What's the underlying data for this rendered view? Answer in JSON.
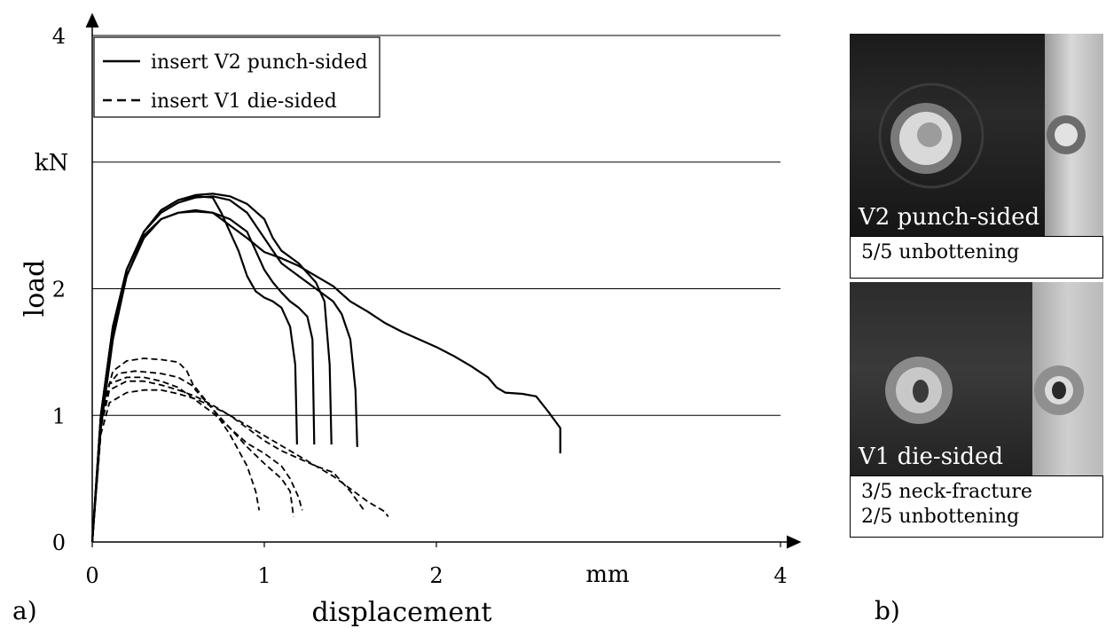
{
  "chart_data": {
    "type": "line",
    "xlabel": "displacement",
    "xunit": "mm",
    "ylabel": "load",
    "yunit": "kN",
    "xlim": [
      0,
      4
    ],
    "ylim": [
      0,
      4
    ],
    "xticks": [
      "0",
      "1",
      "2",
      "4"
    ],
    "yticks": [
      "0",
      "1",
      "2",
      "4"
    ],
    "grid": "horizontal",
    "legend_position": "top-left",
    "legend": [
      {
        "label": "insert V2 punch-sided",
        "style": "solid"
      },
      {
        "label": "insert V1 die-sided",
        "style": "dashed"
      }
    ],
    "series": [
      {
        "group": "V2",
        "style": "solid",
        "points": [
          [
            0,
            0
          ],
          [
            0.05,
            0.9
          ],
          [
            0.12,
            1.6
          ],
          [
            0.2,
            2.1
          ],
          [
            0.3,
            2.4
          ],
          [
            0.4,
            2.55
          ],
          [
            0.5,
            2.6
          ],
          [
            0.6,
            2.61
          ],
          [
            0.7,
            2.6
          ],
          [
            0.8,
            2.5
          ],
          [
            0.9,
            2.4
          ],
          [
            1.0,
            2.29
          ],
          [
            1.1,
            2.24
          ],
          [
            1.2,
            2.18
          ],
          [
            1.3,
            2.1
          ],
          [
            1.4,
            2.02
          ],
          [
            1.5,
            1.9
          ],
          [
            1.6,
            1.82
          ],
          [
            1.7,
            1.73
          ],
          [
            1.8,
            1.66
          ],
          [
            1.9,
            1.6
          ],
          [
            2.0,
            1.54
          ],
          [
            2.1,
            1.47
          ],
          [
            2.2,
            1.39
          ],
          [
            2.3,
            1.3
          ],
          [
            2.35,
            1.22
          ],
          [
            2.4,
            1.18
          ],
          [
            2.5,
            1.17
          ],
          [
            2.58,
            1.15
          ],
          [
            2.65,
            1.03
          ],
          [
            2.72,
            0.9
          ],
          [
            2.72,
            0.7
          ]
        ]
      },
      {
        "group": "V2",
        "style": "solid",
        "points": [
          [
            0,
            0
          ],
          [
            0.05,
            1.0
          ],
          [
            0.12,
            1.7
          ],
          [
            0.2,
            2.15
          ],
          [
            0.3,
            2.45
          ],
          [
            0.4,
            2.6
          ],
          [
            0.5,
            2.68
          ],
          [
            0.6,
            2.72
          ],
          [
            0.7,
            2.73
          ],
          [
            0.8,
            2.7
          ],
          [
            0.9,
            2.6
          ],
          [
            1.0,
            2.4
          ],
          [
            1.05,
            2.3
          ],
          [
            1.1,
            2.2
          ],
          [
            1.2,
            2.1
          ],
          [
            1.3,
            2.0
          ],
          [
            1.4,
            1.9
          ],
          [
            1.45,
            1.8
          ],
          [
            1.5,
            1.6
          ],
          [
            1.53,
            1.2
          ],
          [
            1.54,
            0.75
          ]
        ]
      },
      {
        "group": "V2",
        "style": "solid",
        "points": [
          [
            0,
            0
          ],
          [
            0.05,
            1.0
          ],
          [
            0.12,
            1.7
          ],
          [
            0.2,
            2.15
          ],
          [
            0.3,
            2.45
          ],
          [
            0.4,
            2.62
          ],
          [
            0.5,
            2.7
          ],
          [
            0.6,
            2.74
          ],
          [
            0.7,
            2.75
          ],
          [
            0.8,
            2.73
          ],
          [
            0.9,
            2.67
          ],
          [
            1.0,
            2.55
          ],
          [
            1.05,
            2.4
          ],
          [
            1.1,
            2.3
          ],
          [
            1.2,
            2.2
          ],
          [
            1.3,
            2.05
          ],
          [
            1.35,
            1.9
          ],
          [
            1.38,
            1.4
          ],
          [
            1.39,
            0.77
          ]
        ]
      },
      {
        "group": "V2",
        "style": "solid",
        "points": [
          [
            0,
            0
          ],
          [
            0.05,
            0.95
          ],
          [
            0.12,
            1.65
          ],
          [
            0.2,
            2.1
          ],
          [
            0.3,
            2.42
          ],
          [
            0.4,
            2.55
          ],
          [
            0.5,
            2.6
          ],
          [
            0.6,
            2.62
          ],
          [
            0.7,
            2.6
          ],
          [
            0.8,
            2.55
          ],
          [
            0.9,
            2.45
          ],
          [
            0.95,
            2.3
          ],
          [
            1.0,
            2.15
          ],
          [
            1.05,
            2.05
          ],
          [
            1.1,
            1.97
          ],
          [
            1.15,
            1.9
          ],
          [
            1.2,
            1.85
          ],
          [
            1.25,
            1.78
          ],
          [
            1.28,
            1.6
          ],
          [
            1.29,
            0.77
          ]
        ]
      },
      {
        "group": "V2",
        "style": "solid",
        "points": [
          [
            0,
            0
          ],
          [
            0.05,
            1.0
          ],
          [
            0.12,
            1.7
          ],
          [
            0.2,
            2.15
          ],
          [
            0.3,
            2.45
          ],
          [
            0.4,
            2.62
          ],
          [
            0.5,
            2.7
          ],
          [
            0.6,
            2.73
          ],
          [
            0.7,
            2.72
          ],
          [
            0.75,
            2.6
          ],
          [
            0.8,
            2.45
          ],
          [
            0.85,
            2.3
          ],
          [
            0.9,
            2.1
          ],
          [
            0.95,
            1.98
          ],
          [
            1.0,
            1.93
          ],
          [
            1.05,
            1.9
          ],
          [
            1.1,
            1.85
          ],
          [
            1.15,
            1.7
          ],
          [
            1.18,
            1.4
          ],
          [
            1.19,
            0.77
          ]
        ]
      },
      {
        "group": "V1",
        "style": "dashed",
        "points": [
          [
            0,
            0
          ],
          [
            0.05,
            0.9
          ],
          [
            0.1,
            1.25
          ],
          [
            0.15,
            1.33
          ],
          [
            0.25,
            1.35
          ],
          [
            0.4,
            1.33
          ],
          [
            0.5,
            1.3
          ],
          [
            0.6,
            1.22
          ],
          [
            0.7,
            1.05
          ],
          [
            0.8,
            0.85
          ],
          [
            0.9,
            0.6
          ],
          [
            0.95,
            0.4
          ],
          [
            0.97,
            0.25
          ]
        ]
      },
      {
        "group": "V1",
        "style": "dashed",
        "points": [
          [
            0,
            0
          ],
          [
            0.05,
            1.0
          ],
          [
            0.12,
            1.35
          ],
          [
            0.2,
            1.43
          ],
          [
            0.3,
            1.45
          ],
          [
            0.4,
            1.44
          ],
          [
            0.5,
            1.42
          ],
          [
            0.55,
            1.35
          ],
          [
            0.6,
            1.2
          ],
          [
            0.7,
            1.05
          ],
          [
            0.8,
            0.9
          ],
          [
            0.9,
            0.78
          ],
          [
            1.0,
            0.7
          ],
          [
            1.1,
            0.6
          ],
          [
            1.15,
            0.5
          ],
          [
            1.2,
            0.35
          ],
          [
            1.22,
            0.25
          ]
        ]
      },
      {
        "group": "V1",
        "style": "dashed",
        "points": [
          [
            0,
            0
          ],
          [
            0.05,
            0.95
          ],
          [
            0.1,
            1.25
          ],
          [
            0.2,
            1.3
          ],
          [
            0.3,
            1.3
          ],
          [
            0.4,
            1.27
          ],
          [
            0.5,
            1.22
          ],
          [
            0.6,
            1.12
          ],
          [
            0.7,
            1.02
          ],
          [
            0.8,
            0.9
          ],
          [
            0.9,
            0.75
          ],
          [
            1.0,
            0.62
          ],
          [
            1.1,
            0.5
          ],
          [
            1.15,
            0.4
          ],
          [
            1.17,
            0.2
          ]
        ]
      },
      {
        "group": "V1",
        "style": "dashed",
        "points": [
          [
            0,
            0
          ],
          [
            0.05,
            0.85
          ],
          [
            0.1,
            1.1
          ],
          [
            0.2,
            1.18
          ],
          [
            0.3,
            1.2
          ],
          [
            0.4,
            1.2
          ],
          [
            0.5,
            1.17
          ],
          [
            0.6,
            1.13
          ],
          [
            0.7,
            1.07
          ],
          [
            0.8,
            1.0
          ],
          [
            0.9,
            0.9
          ],
          [
            1.0,
            0.8
          ],
          [
            1.1,
            0.72
          ],
          [
            1.2,
            0.66
          ],
          [
            1.3,
            0.6
          ],
          [
            1.4,
            0.55
          ],
          [
            1.5,
            0.4
          ],
          [
            1.58,
            0.25
          ]
        ]
      },
      {
        "group": "V1",
        "style": "dashed",
        "points": [
          [
            0,
            0
          ],
          [
            0.05,
            0.9
          ],
          [
            0.1,
            1.2
          ],
          [
            0.2,
            1.27
          ],
          [
            0.3,
            1.27
          ],
          [
            0.4,
            1.24
          ],
          [
            0.5,
            1.2
          ],
          [
            0.6,
            1.15
          ],
          [
            0.7,
            1.08
          ],
          [
            0.8,
            1.0
          ],
          [
            0.9,
            0.92
          ],
          [
            1.0,
            0.84
          ],
          [
            1.1,
            0.76
          ],
          [
            1.2,
            0.68
          ],
          [
            1.3,
            0.6
          ],
          [
            1.4,
            0.52
          ],
          [
            1.5,
            0.42
          ],
          [
            1.6,
            0.32
          ],
          [
            1.7,
            0.24
          ],
          [
            1.72,
            0.2
          ]
        ]
      }
    ]
  },
  "panels": {
    "a_label": "a)",
    "b_label": "b)"
  },
  "photos": [
    {
      "caption": "V2 punch-sided",
      "results": [
        "5/5 unbottening"
      ]
    },
    {
      "caption": "V1 die-sided",
      "results": [
        "3/5 neck-fracture",
        "2/5 unbottening"
      ]
    }
  ]
}
